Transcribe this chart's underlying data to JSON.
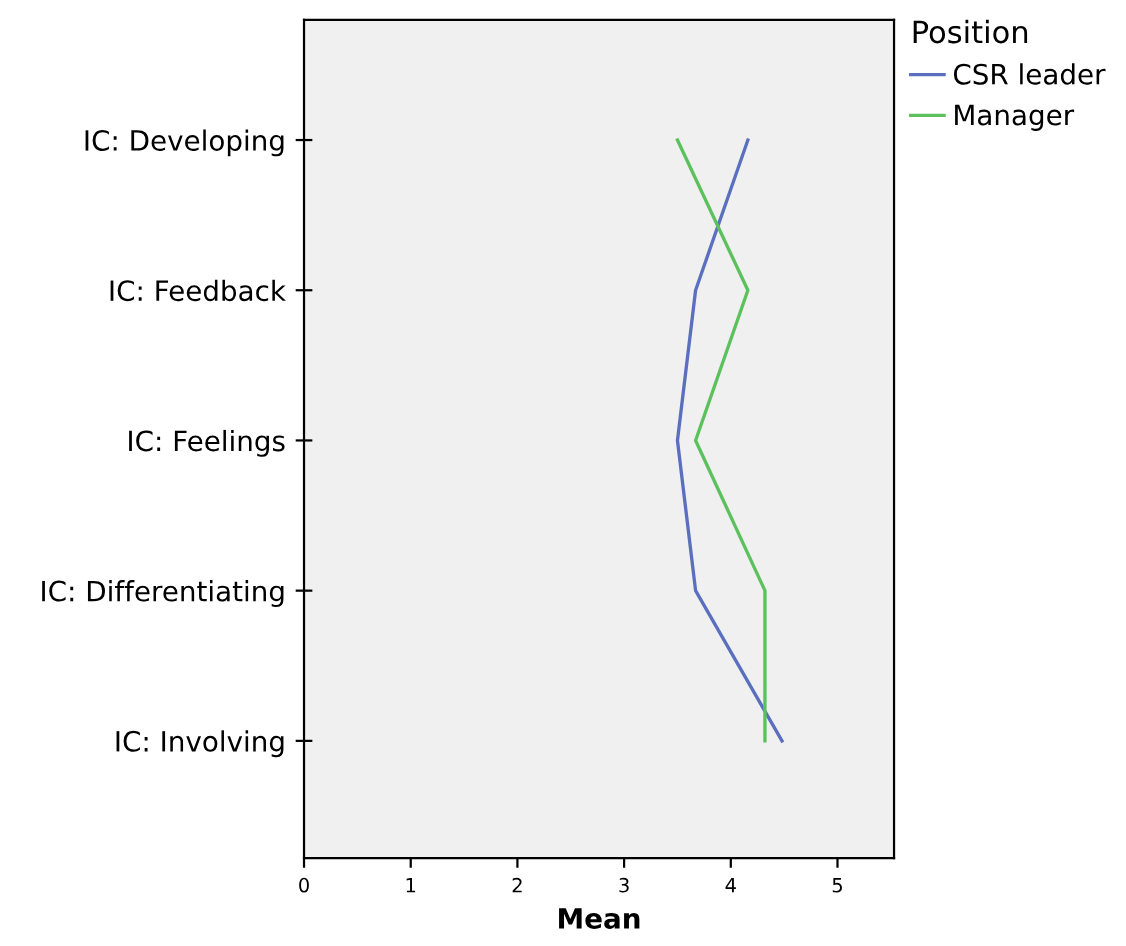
{
  "chart_data": {
    "type": "line",
    "orientation": "horizontal",
    "xlabel": "Mean",
    "legend_title": "Position",
    "legend": "top right",
    "categories": [
      "IC: Developing",
      "IC: Feedback",
      "IC: Feelings",
      "IC: Differentiating",
      "IC: Involving"
    ],
    "xlim": [
      0,
      5.53
    ],
    "xticks": [
      0,
      1,
      2,
      3,
      4,
      5
    ],
    "grid": false,
    "series": [
      {
        "name": "CSR leader",
        "color": "#5b6fbf",
        "values": [
          4.16,
          3.67,
          3.5,
          3.67,
          4.48
        ]
      },
      {
        "name": "Manager",
        "color": "#5cc15c",
        "values": [
          3.5,
          4.16,
          3.67,
          4.32,
          4.32
        ]
      }
    ]
  }
}
